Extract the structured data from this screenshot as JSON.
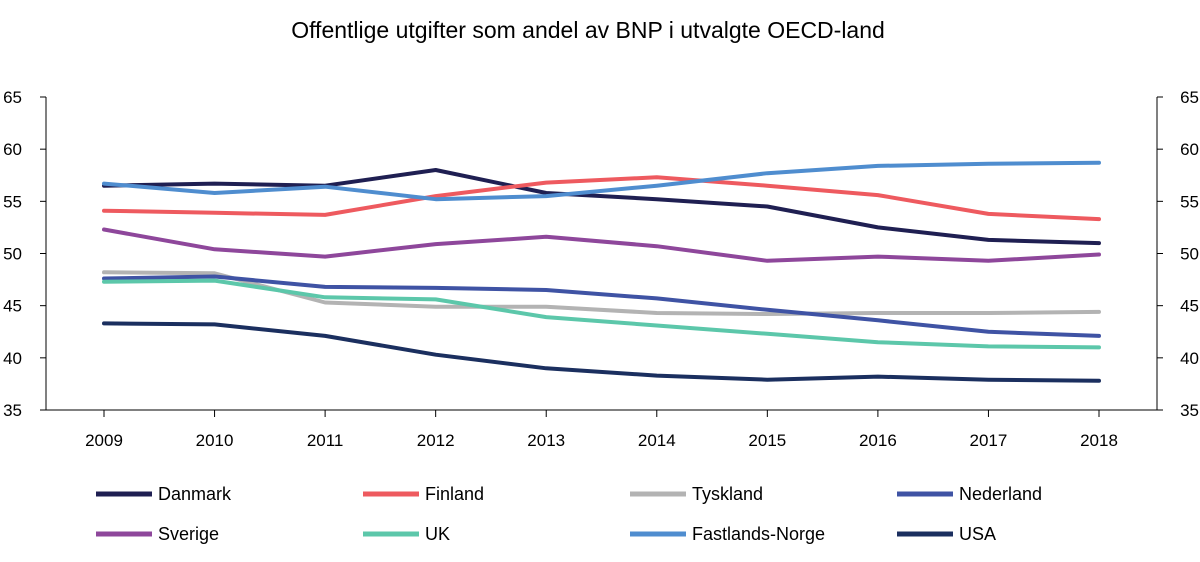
{
  "chart_data": {
    "type": "line",
    "title": "Offentlige utgifter som andel av BNP i utvalgte OECD-land",
    "xlabel": "",
    "ylabel": "",
    "x": [
      "2009",
      "2010",
      "2011",
      "2012",
      "2013",
      "2014",
      "2015",
      "2016",
      "2017",
      "2018"
    ],
    "ylim": [
      35,
      65
    ],
    "yticks": [
      35,
      40,
      45,
      50,
      55,
      60,
      65
    ],
    "grid": false,
    "legend_position": "bottom",
    "series": [
      {
        "name": "Danmark",
        "color": "#1f1f52",
        "values": [
          56.5,
          56.7,
          56.5,
          58.0,
          55.8,
          55.2,
          54.5,
          52.5,
          51.3,
          51.0
        ]
      },
      {
        "name": "Finland",
        "color": "#ee5a5f",
        "values": [
          54.1,
          53.9,
          53.7,
          55.5,
          56.8,
          57.3,
          56.5,
          55.6,
          53.8,
          53.3
        ]
      },
      {
        "name": "Tyskland",
        "color": "#b3b3b3",
        "values": [
          48.2,
          48.1,
          45.3,
          44.9,
          44.9,
          44.3,
          44.2,
          44.3,
          44.3,
          44.4
        ]
      },
      {
        "name": "Nederland",
        "color": "#3f53a4",
        "values": [
          47.6,
          47.8,
          46.8,
          46.7,
          46.5,
          45.7,
          44.6,
          43.6,
          42.5,
          42.1
        ]
      },
      {
        "name": "Sverige",
        "color": "#8e479b",
        "values": [
          52.3,
          50.4,
          49.7,
          50.9,
          51.6,
          50.7,
          49.3,
          49.7,
          49.3,
          49.9
        ]
      },
      {
        "name": "UK",
        "color": "#5cc7aa",
        "values": [
          47.3,
          47.4,
          45.8,
          45.6,
          43.9,
          43.1,
          42.3,
          41.5,
          41.1,
          41.0
        ]
      },
      {
        "name": "Fastlands-Norge",
        "color": "#4f8dcf",
        "values": [
          56.7,
          55.8,
          56.4,
          55.2,
          55.5,
          56.5,
          57.7,
          58.4,
          58.6,
          58.7
        ]
      },
      {
        "name": "USA",
        "color": "#1b2f5f",
        "values": [
          43.3,
          43.2,
          42.1,
          40.3,
          39.0,
          38.3,
          37.9,
          38.2,
          37.9,
          37.8
        ]
      }
    ]
  }
}
